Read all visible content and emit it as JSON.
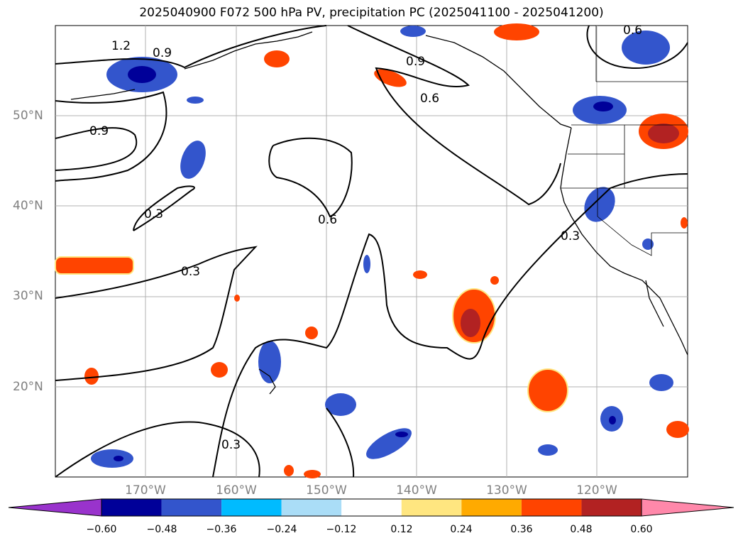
{
  "title": "2025040900 F072 500 hPa PV, precipitation PC (2025041100 - 2025041200)",
  "lat_labels": [
    "50°N",
    "40°N",
    "30°N",
    "20°N"
  ],
  "lon_labels": [
    "170°W",
    "160°W",
    "150°W",
    "140°W",
    "130°W",
    "120°W"
  ],
  "contour_labels": [
    "1.2",
    "0.9",
    "0.9",
    "0.9",
    "0.6",
    "0.3",
    "0.3",
    "0.6",
    "0.3",
    "0.3",
    "0.6"
  ],
  "colorbar": {
    "ticks": [
      "−0.60",
      "−0.48",
      "−0.36",
      "−0.24",
      "−0.12",
      "0.12",
      "0.24",
      "0.36",
      "0.48",
      "0.60"
    ],
    "colors": [
      "#9933cc",
      "#000099",
      "#3355cc",
      "#00bbff",
      "#aaddf7",
      "#ffffff",
      "#ffe680",
      "#ffaa00",
      "#ff4400",
      "#b22222",
      "#ff88aa"
    ]
  }
}
